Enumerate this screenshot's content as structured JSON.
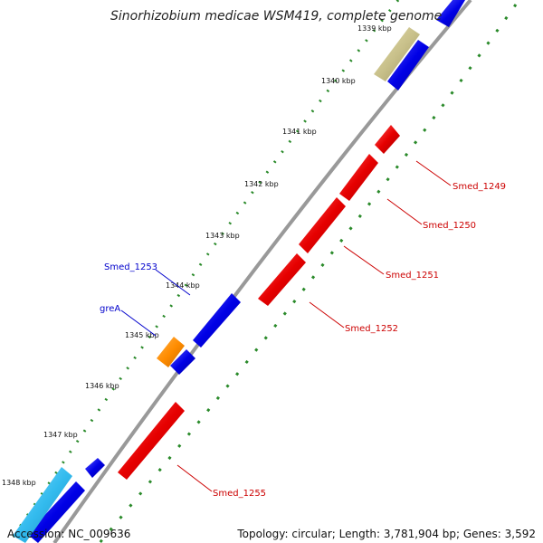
{
  "title": "Sinorhizobium medicae WSM419, complete genome",
  "accession": "Accession: NC_009636",
  "topology": "Topology: circular; Length: 3,781,904 bp; Genes: 3,592",
  "colors": {
    "forward_gene": "#0000e6",
    "reverse_gene": "#e60000",
    "greA": "#ff8c00",
    "olive_feature": "#c8c08a",
    "cyan_feature": "#33bbee",
    "backbone": "#888888",
    "gc_dots": "#2a8a2a"
  },
  "ticks": [
    {
      "label": "1339 kbp"
    },
    {
      "label": "1340 kbp"
    },
    {
      "label": "1341 kbp"
    },
    {
      "label": "1342 kbp"
    },
    {
      "label": "1343 kbp"
    },
    {
      "label": "1344 kbp"
    },
    {
      "label": "1345 kbp"
    },
    {
      "label": "1346 kbp"
    },
    {
      "label": "1347 kbp"
    },
    {
      "label": "1348 kbp"
    }
  ],
  "gene_labels": {
    "smed_1249": "Smed_1249",
    "smed_1250": "Smed_1250",
    "smed_1251": "Smed_1251",
    "smed_1252": "Smed_1252",
    "smed_1253": "Smed_1253",
    "grea": "greA",
    "smed_1255": "Smed_1255"
  }
}
